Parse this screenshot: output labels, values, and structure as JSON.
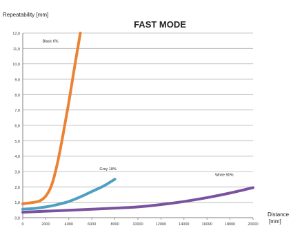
{
  "chart_data": {
    "type": "line",
    "title": "FAST MODE",
    "ylabel": "Repeatability [mm]",
    "xlabel_line1": "Distance",
    "xlabel_line2": "[mm]",
    "xlim": [
      0,
      20000
    ],
    "ylim": [
      0,
      12
    ],
    "x_ticks": [
      0,
      2000,
      4000,
      6000,
      8000,
      10000,
      12000,
      14000,
      16000,
      18000,
      20000
    ],
    "y_ticks": [
      "0,0",
      "1,0",
      "2,0",
      "3,0",
      "4,0",
      "5,0",
      "6,0",
      "7,0",
      "8,0",
      "9,0",
      "10,0",
      "11,0",
      "12,0"
    ],
    "grid": true,
    "series": [
      {
        "name": "Black 6%",
        "color": "#ec8234",
        "x": [
          0,
          500,
          1000,
          1500,
          2000,
          2500,
          3000,
          3500,
          4000,
          4500,
          5000
        ],
        "y": [
          0.9,
          0.95,
          1.0,
          1.1,
          1.4,
          2.1,
          3.5,
          5.4,
          7.5,
          9.8,
          12.0
        ]
      },
      {
        "name": "Grey 18%",
        "color": "#4f9fc1",
        "x": [
          0,
          1000,
          2000,
          3000,
          4000,
          5000,
          6000,
          7000,
          8000
        ],
        "y": [
          0.55,
          0.6,
          0.7,
          0.85,
          1.05,
          1.35,
          1.7,
          2.05,
          2.5
        ]
      },
      {
        "name": "White 90%",
        "color": "#7a52a0",
        "x": [
          0,
          2000,
          4000,
          6000,
          8000,
          10000,
          12000,
          14000,
          16000,
          18000,
          20000
        ],
        "y": [
          0.35,
          0.42,
          0.48,
          0.55,
          0.62,
          0.7,
          0.85,
          1.05,
          1.3,
          1.6,
          1.95
        ]
      }
    ],
    "annotations": [
      {
        "text": "Black 6%",
        "x": 2400,
        "y": 11.4
      },
      {
        "text": "Grey 18%",
        "x": 7400,
        "y": 3.1
      },
      {
        "text": "White  90%",
        "x": 17500,
        "y": 2.7
      }
    ]
  }
}
